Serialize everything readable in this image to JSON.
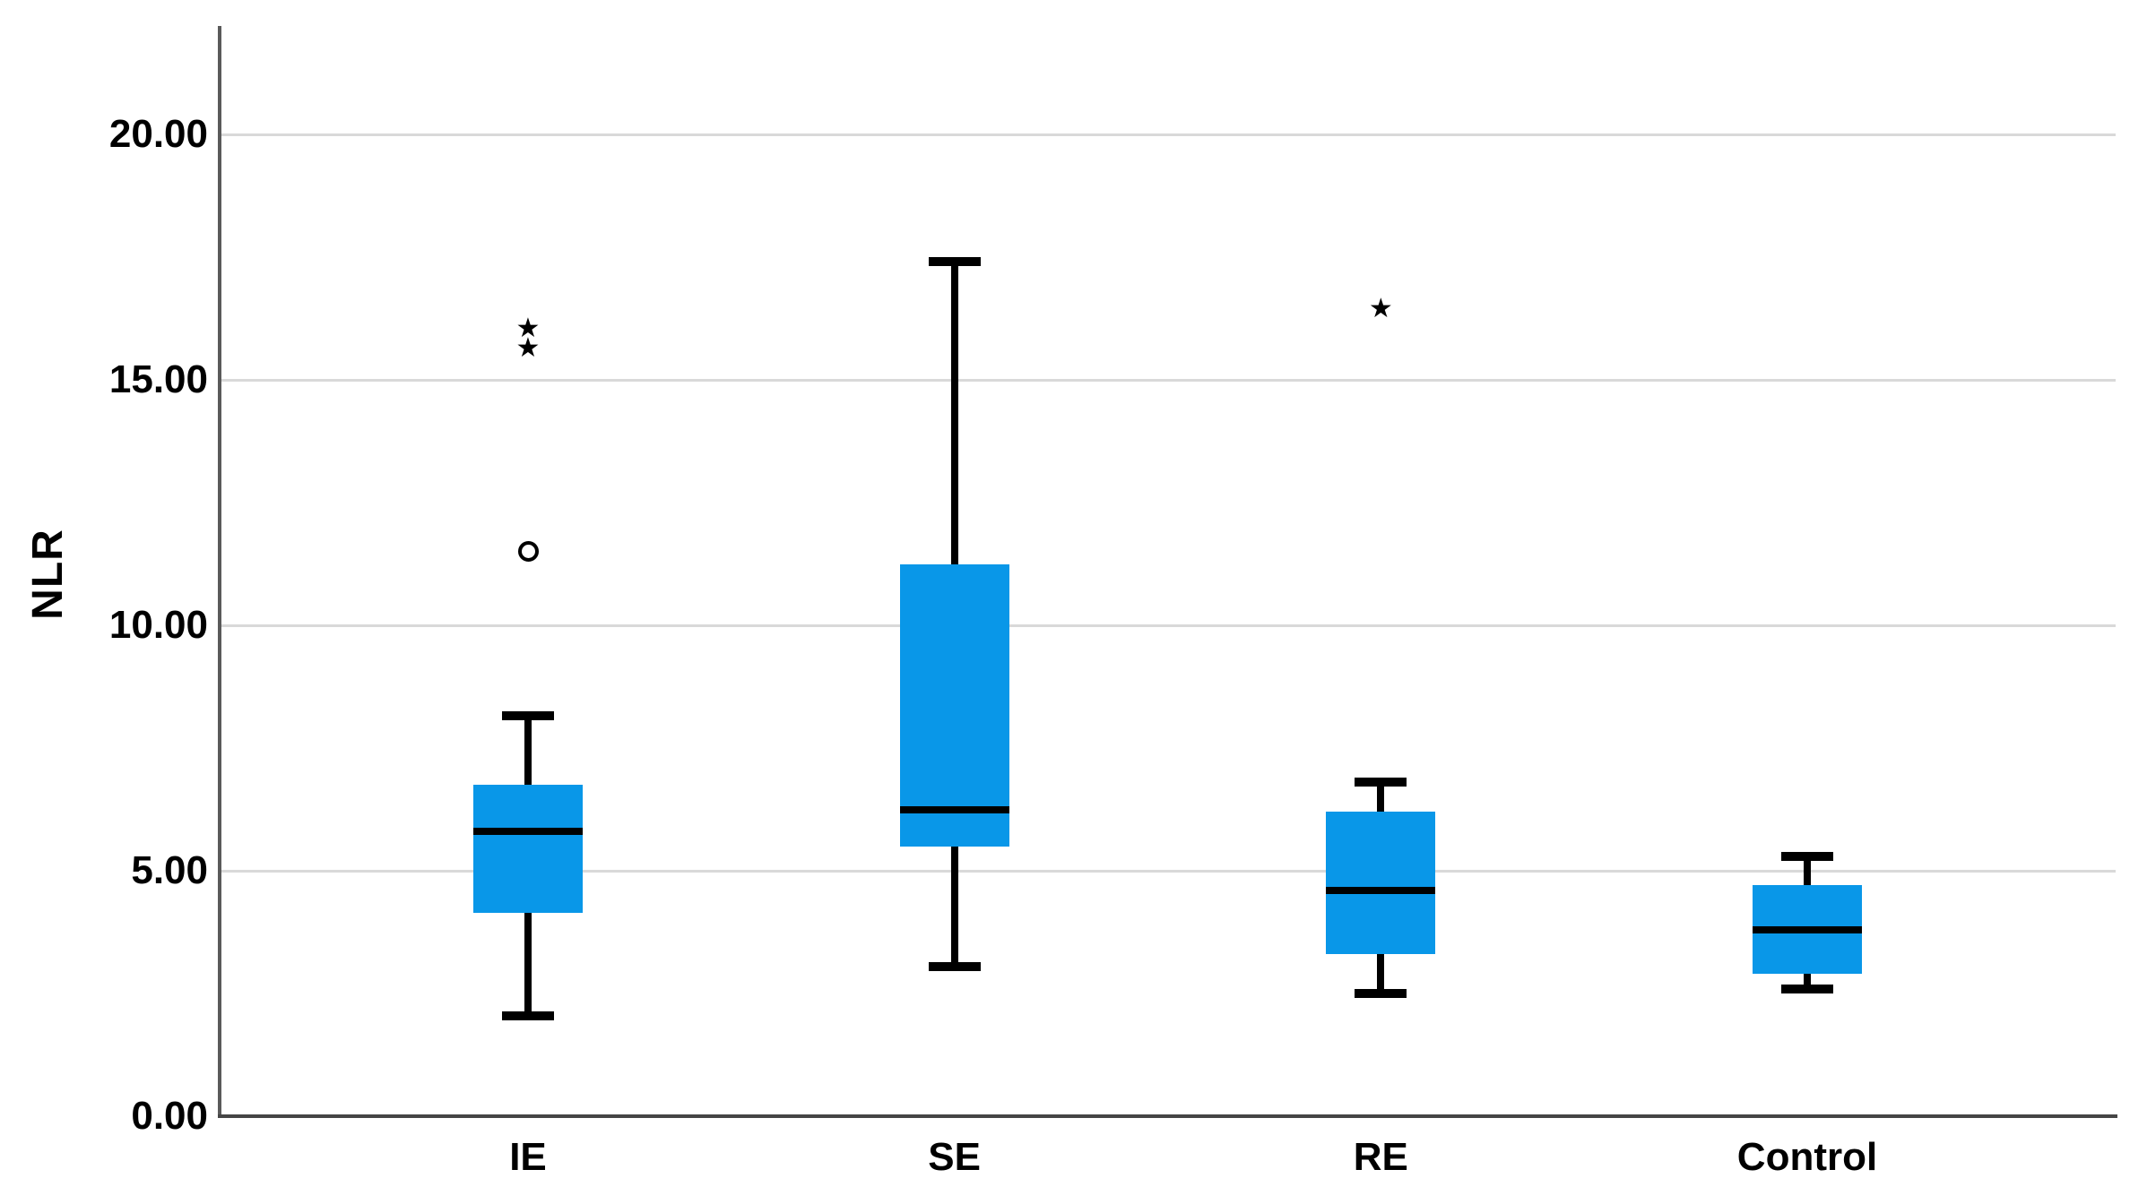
{
  "chart_data": {
    "type": "box",
    "title": "",
    "xlabel": "",
    "ylabel": "NLR",
    "ylim": [
      0,
      22.2
    ],
    "grid": true,
    "legend": false,
    "yticks": [
      {
        "value": 0,
        "label": "0.00"
      },
      {
        "value": 5,
        "label": "5.00"
      },
      {
        "value": 10,
        "label": "10.00"
      },
      {
        "value": 15,
        "label": "15.00"
      },
      {
        "value": 20,
        "label": "20.00"
      }
    ],
    "categories": [
      "IE",
      "SE",
      "RE",
      "Control"
    ],
    "boxes": [
      {
        "category": "IE",
        "whisker_low": 2.05,
        "q1": 4.15,
        "median": 5.8,
        "q3": 6.75,
        "whisker_high": 8.15,
        "outliers": [
          {
            "marker": "star",
            "value": 16.0
          },
          {
            "marker": "star",
            "value": 15.6
          },
          {
            "marker": "circle",
            "value": 11.5
          }
        ]
      },
      {
        "category": "SE",
        "whisker_low": 3.05,
        "q1": 5.5,
        "median": 6.25,
        "q3": 11.25,
        "whisker_high": 17.4,
        "outliers": []
      },
      {
        "category": "RE",
        "whisker_low": 2.5,
        "q1": 3.3,
        "median": 4.6,
        "q3": 6.2,
        "whisker_high": 6.8,
        "outliers": [
          {
            "marker": "star",
            "value": 16.4
          }
        ]
      },
      {
        "category": "Control",
        "whisker_low": 2.6,
        "q1": 2.9,
        "median": 3.8,
        "q3": 4.7,
        "whisker_high": 5.3,
        "outliers": []
      }
    ],
    "colors": {
      "box_fill": "#0997E8",
      "median": "#000000",
      "whisker": "#000000",
      "outlier": "#000000",
      "gridline": "#D9D9D9",
      "axis": "#5A5A5A",
      "text": "#000000",
      "background": "#FFFFFF"
    }
  }
}
